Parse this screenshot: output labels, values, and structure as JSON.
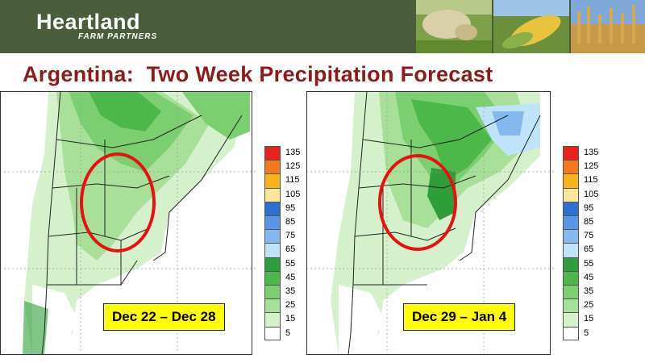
{
  "header": {
    "brand_name": "Heartland",
    "brand_tagline": "FARM PARTNERS",
    "photos": [
      "cattle-photo",
      "corn-photo",
      "wheat-photo"
    ]
  },
  "slide": {
    "title": "Argentina:  Two Week Precipitation Forecast"
  },
  "maps": [
    {
      "label": "Dec 22 – Dec 28",
      "highlight": "red circle over central Argentina"
    },
    {
      "label": "Dec 29 – Jan 4",
      "highlight": "red circle over central Argentina"
    }
  ],
  "legend": {
    "labels": [
      "135",
      "125",
      "115",
      "105",
      "95",
      "85",
      "75",
      "65",
      "55",
      "45",
      "35",
      "25",
      "15",
      "5"
    ],
    "colors": [
      "#e8221c",
      "#f27a1c",
      "#f8b41c",
      "#fbe69c",
      "#2f6fd0",
      "#5b95e6",
      "#86b8f0",
      "#bfe4fa",
      "#2e9e3a",
      "#4cb84a",
      "#7ccf70",
      "#a8e09a",
      "#d4f1cc",
      "#ffffff"
    ]
  },
  "colors": {
    "banner": "#4a5d3a",
    "title": "#8c1b1b",
    "highlight_circle": "#e81010",
    "label_bg": "#ffff00"
  }
}
